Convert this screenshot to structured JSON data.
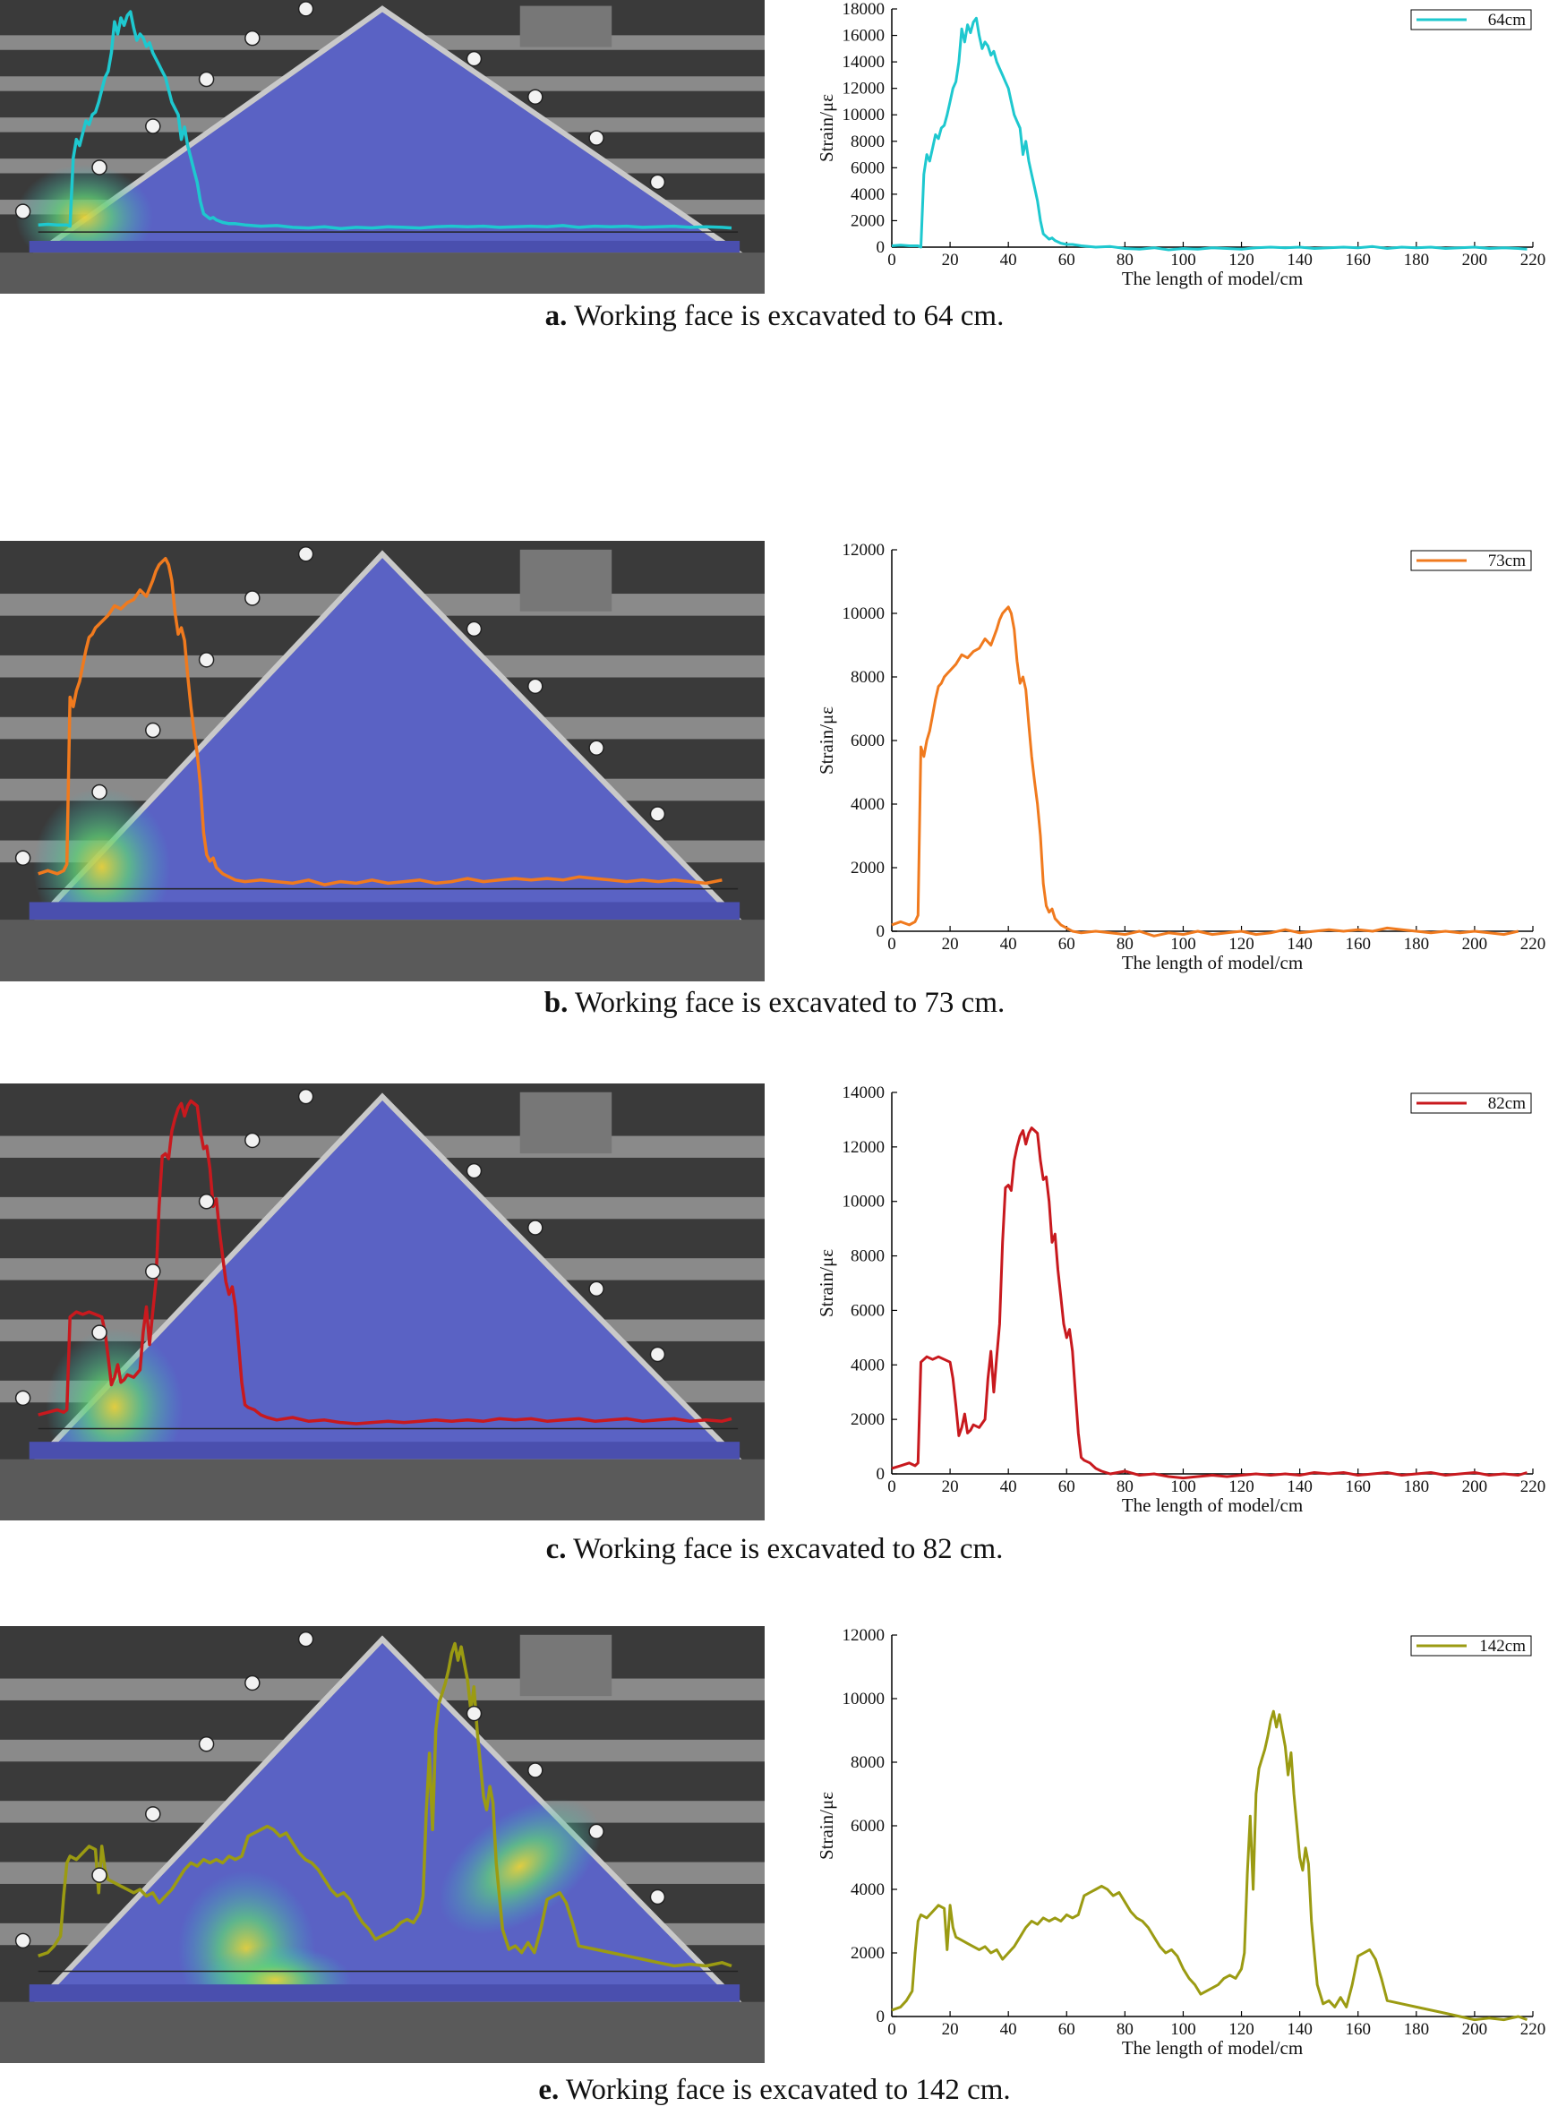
{
  "panels": [
    {
      "id": "a",
      "caption_letter": "a.",
      "caption_text": "Working face is excavated to 64 cm.",
      "chart_data": {
        "type": "line",
        "xlabel": "The length of model/cm",
        "ylabel": "Strain/με",
        "xlim": [
          0,
          220
        ],
        "ylim": [
          0,
          18000
        ],
        "xticks": [
          0,
          20,
          40,
          60,
          80,
          100,
          120,
          140,
          160,
          180,
          200,
          220
        ],
        "yticks": [
          0,
          2000,
          4000,
          6000,
          8000,
          10000,
          12000,
          14000,
          16000,
          18000
        ],
        "legend_position": "top-right",
        "grid": false,
        "series": [
          {
            "name": "64cm",
            "color": "#1ec8cf",
            "x": [
              0,
              3,
              6,
              9,
              10,
              11,
              12,
              13,
              14,
              15,
              16,
              17,
              18,
              19,
              20,
              21,
              22,
              23,
              24,
              25,
              26,
              27,
              28,
              29,
              30,
              31,
              32,
              33,
              34,
              35,
              36,
              37,
              38,
              39,
              40,
              41,
              42,
              43,
              44,
              45,
              46,
              47,
              48,
              49,
              50,
              51,
              52,
              53,
              54,
              55,
              56,
              58,
              60,
              62,
              65,
              70,
              75,
              80,
              85,
              90,
              95,
              100,
              105,
              110,
              115,
              120,
              125,
              130,
              135,
              140,
              145,
              150,
              155,
              160,
              165,
              170,
              175,
              180,
              185,
              190,
              195,
              200,
              205,
              210,
              215,
              218
            ],
            "y": [
              100,
              150,
              100,
              100,
              0,
              5500,
              7000,
              6500,
              7500,
              8500,
              8200,
              9000,
              9200,
              10000,
              11000,
              12000,
              12500,
              14000,
              16500,
              15500,
              16800,
              16200,
              17000,
              17300,
              16000,
              15000,
              15500,
              15200,
              14500,
              14800,
              14000,
              13500,
              13000,
              12500,
              12000,
              11000,
              10000,
              9500,
              9000,
              7000,
              8000,
              6500,
              5500,
              4500,
              3500,
              2000,
              1000,
              800,
              600,
              700,
              500,
              300,
              200,
              200,
              100,
              0,
              50,
              -100,
              -150,
              -50,
              -200,
              -100,
              -150,
              -50,
              -100,
              -150,
              -50,
              0,
              -50,
              0,
              -100,
              -50,
              0,
              -50,
              50,
              -100,
              0,
              -50,
              0,
              -100,
              -50,
              0,
              -100,
              -50,
              -100,
              -150
            ]
          }
        ]
      }
    },
    {
      "id": "b",
      "caption_letter": "b.",
      "caption_text": "Working face is excavated to 73 cm.",
      "chart_data": {
        "type": "line",
        "xlabel": "The length of model/cm",
        "ylabel": "Strain/με",
        "xlim": [
          0,
          220
        ],
        "ylim": [
          0,
          12000
        ],
        "xticks": [
          0,
          20,
          40,
          60,
          80,
          100,
          120,
          140,
          160,
          180,
          200,
          220
        ],
        "yticks": [
          0,
          2000,
          4000,
          6000,
          8000,
          10000,
          12000
        ],
        "legend_position": "top-right",
        "grid": false,
        "series": [
          {
            "name": "73cm",
            "color": "#f07a1e",
            "x": [
              0,
              3,
              6,
              8,
              9,
              10,
              11,
              12,
              13,
              14,
              15,
              16,
              17,
              18,
              19,
              20,
              22,
              24,
              26,
              28,
              30,
              32,
              34,
              36,
              37,
              38,
              39,
              40,
              41,
              42,
              43,
              44,
              45,
              46,
              47,
              48,
              49,
              50,
              51,
              52,
              53,
              54,
              55,
              56,
              58,
              60,
              62,
              65,
              70,
              75,
              80,
              85,
              90,
              95,
              100,
              105,
              110,
              115,
              120,
              125,
              130,
              135,
              140,
              145,
              150,
              155,
              160,
              165,
              170,
              175,
              180,
              185,
              190,
              195,
              200,
              205,
              210,
              215
            ],
            "y": [
              200,
              300,
              200,
              300,
              500,
              5800,
              5500,
              6000,
              6300,
              6800,
              7300,
              7700,
              7800,
              8000,
              8100,
              8200,
              8400,
              8700,
              8600,
              8800,
              8900,
              9200,
              9000,
              9500,
              9800,
              10000,
              10100,
              10200,
              10000,
              9500,
              8500,
              7800,
              8000,
              7600,
              6500,
              5500,
              4700,
              4000,
              3000,
              1500,
              800,
              600,
              700,
              400,
              200,
              100,
              0,
              -50,
              0,
              -50,
              -100,
              0,
              -150,
              -50,
              -100,
              0,
              -100,
              -50,
              0,
              -100,
              -50,
              50,
              -50,
              0,
              50,
              0,
              50,
              0,
              100,
              50,
              0,
              -50,
              0,
              -50,
              0,
              -50,
              -100,
              0
            ]
          }
        ]
      }
    },
    {
      "id": "c",
      "caption_letter": "c.",
      "caption_text": "Working face is excavated to 82 cm.",
      "chart_data": {
        "type": "line",
        "xlabel": "The length of model/cm",
        "ylabel": "Strain/με",
        "xlim": [
          0,
          220
        ],
        "ylim": [
          0,
          14000
        ],
        "xticks": [
          0,
          20,
          40,
          60,
          80,
          100,
          120,
          140,
          160,
          180,
          200,
          220
        ],
        "yticks": [
          0,
          2000,
          4000,
          6000,
          8000,
          10000,
          12000,
          14000
        ],
        "legend_position": "top-right",
        "grid": false,
        "series": [
          {
            "name": "82cm",
            "color": "#c8191e",
            "x": [
              0,
              3,
              6,
              8,
              9,
              10,
              12,
              14,
              16,
              18,
              20,
              21,
              22,
              23,
              24,
              25,
              26,
              27,
              28,
              30,
              32,
              33,
              34,
              35,
              36,
              37,
              38,
              39,
              40,
              41,
              42,
              43,
              44,
              45,
              46,
              47,
              48,
              49,
              50,
              51,
              52,
              53,
              54,
              55,
              56,
              57,
              58,
              59,
              60,
              61,
              62,
              63,
              64,
              65,
              66,
              68,
              70,
              72,
              75,
              80,
              85,
              90,
              95,
              100,
              105,
              110,
              115,
              120,
              125,
              130,
              135,
              140,
              145,
              150,
              155,
              160,
              165,
              170,
              175,
              180,
              185,
              190,
              195,
              200,
              205,
              210,
              215,
              218
            ],
            "y": [
              200,
              300,
              400,
              300,
              400,
              4100,
              4300,
              4200,
              4300,
              4200,
              4100,
              3500,
              2500,
              1400,
              1700,
              2200,
              1500,
              1600,
              1800,
              1700,
              2000,
              3500,
              4500,
              3000,
              4300,
              5500,
              8500,
              10500,
              10600,
              10400,
              11500,
              12000,
              12400,
              12600,
              12100,
              12500,
              12700,
              12600,
              12500,
              11500,
              10800,
              10900,
              10000,
              8500,
              8800,
              7500,
              6500,
              5500,
              5000,
              5300,
              4500,
              3000,
              1500,
              600,
              500,
              400,
              200,
              100,
              0,
              100,
              -50,
              0,
              -100,
              -150,
              -100,
              -50,
              -100,
              -50,
              0,
              -50,
              0,
              -50,
              50,
              0,
              50,
              -50,
              0,
              50,
              -50,
              0,
              50,
              -50,
              0,
              50,
              -50,
              0,
              -50,
              50
            ]
          }
        ]
      }
    },
    {
      "id": "e",
      "caption_letter": "e.",
      "caption_text": "Working face is excavated to 142 cm.",
      "chart_data": {
        "type": "line",
        "xlabel": "The length of model/cm",
        "ylabel": "Strain/με",
        "xlim": [
          0,
          220
        ],
        "ylim": [
          0,
          12000
        ],
        "xticks": [
          0,
          20,
          40,
          60,
          80,
          100,
          120,
          140,
          160,
          180,
          200,
          220
        ],
        "yticks": [
          0,
          2000,
          4000,
          6000,
          8000,
          10000,
          12000
        ],
        "legend_position": "top-right",
        "grid": false,
        "series": [
          {
            "name": "142cm",
            "color": "#9b9b12",
            "x": [
              0,
              3,
              5,
              7,
              8,
              9,
              10,
              12,
              14,
              16,
              18,
              19,
              20,
              21,
              22,
              24,
              26,
              28,
              30,
              32,
              34,
              36,
              38,
              40,
              42,
              44,
              46,
              48,
              50,
              52,
              54,
              56,
              58,
              60,
              62,
              64,
              66,
              68,
              70,
              72,
              74,
              76,
              78,
              80,
              82,
              84,
              86,
              88,
              90,
              92,
              94,
              96,
              98,
              100,
              102,
              104,
              106,
              108,
              110,
              112,
              114,
              116,
              118,
              120,
              121,
              122,
              123,
              124,
              125,
              126,
              127,
              128,
              129,
              130,
              131,
              132,
              133,
              134,
              135,
              136,
              137,
              138,
              139,
              140,
              141,
              142,
              143,
              144,
              145,
              146,
              147,
              148,
              150,
              152,
              154,
              156,
              158,
              160,
              162,
              164,
              166,
              168,
              170,
              175,
              180,
              185,
              190,
              195,
              200,
              205,
              210,
              215,
              218
            ],
            "y": [
              200,
              300,
              500,
              800,
              2000,
              3000,
              3200,
              3100,
              3300,
              3500,
              3400,
              2100,
              3500,
              2800,
              2500,
              2400,
              2300,
              2200,
              2100,
              2200,
              2000,
              2100,
              1800,
              2000,
              2200,
              2500,
              2800,
              3000,
              2900,
              3100,
              3000,
              3100,
              3000,
              3200,
              3100,
              3200,
              3800,
              3900,
              4000,
              4100,
              4000,
              3800,
              3900,
              3600,
              3300,
              3100,
              3000,
              2800,
              2500,
              2200,
              2000,
              2100,
              1900,
              1500,
              1200,
              1000,
              700,
              800,
              900,
              1000,
              1200,
              1300,
              1200,
              1500,
              2000,
              4500,
              6300,
              4000,
              7000,
              7800,
              8100,
              8400,
              8800,
              9300,
              9600,
              9100,
              9500,
              9000,
              8500,
              7600,
              8300,
              7000,
              6000,
              5000,
              4600,
              5300,
              4800,
              3000,
              2000,
              1000,
              700,
              400,
              500,
              300,
              600,
              300,
              1000,
              1900,
              2000,
              2100,
              1800,
              1200,
              500,
              400,
              300,
              200,
              100,
              0,
              -100,
              -50,
              -100,
              0,
              -100
            ]
          }
        ]
      }
    }
  ]
}
